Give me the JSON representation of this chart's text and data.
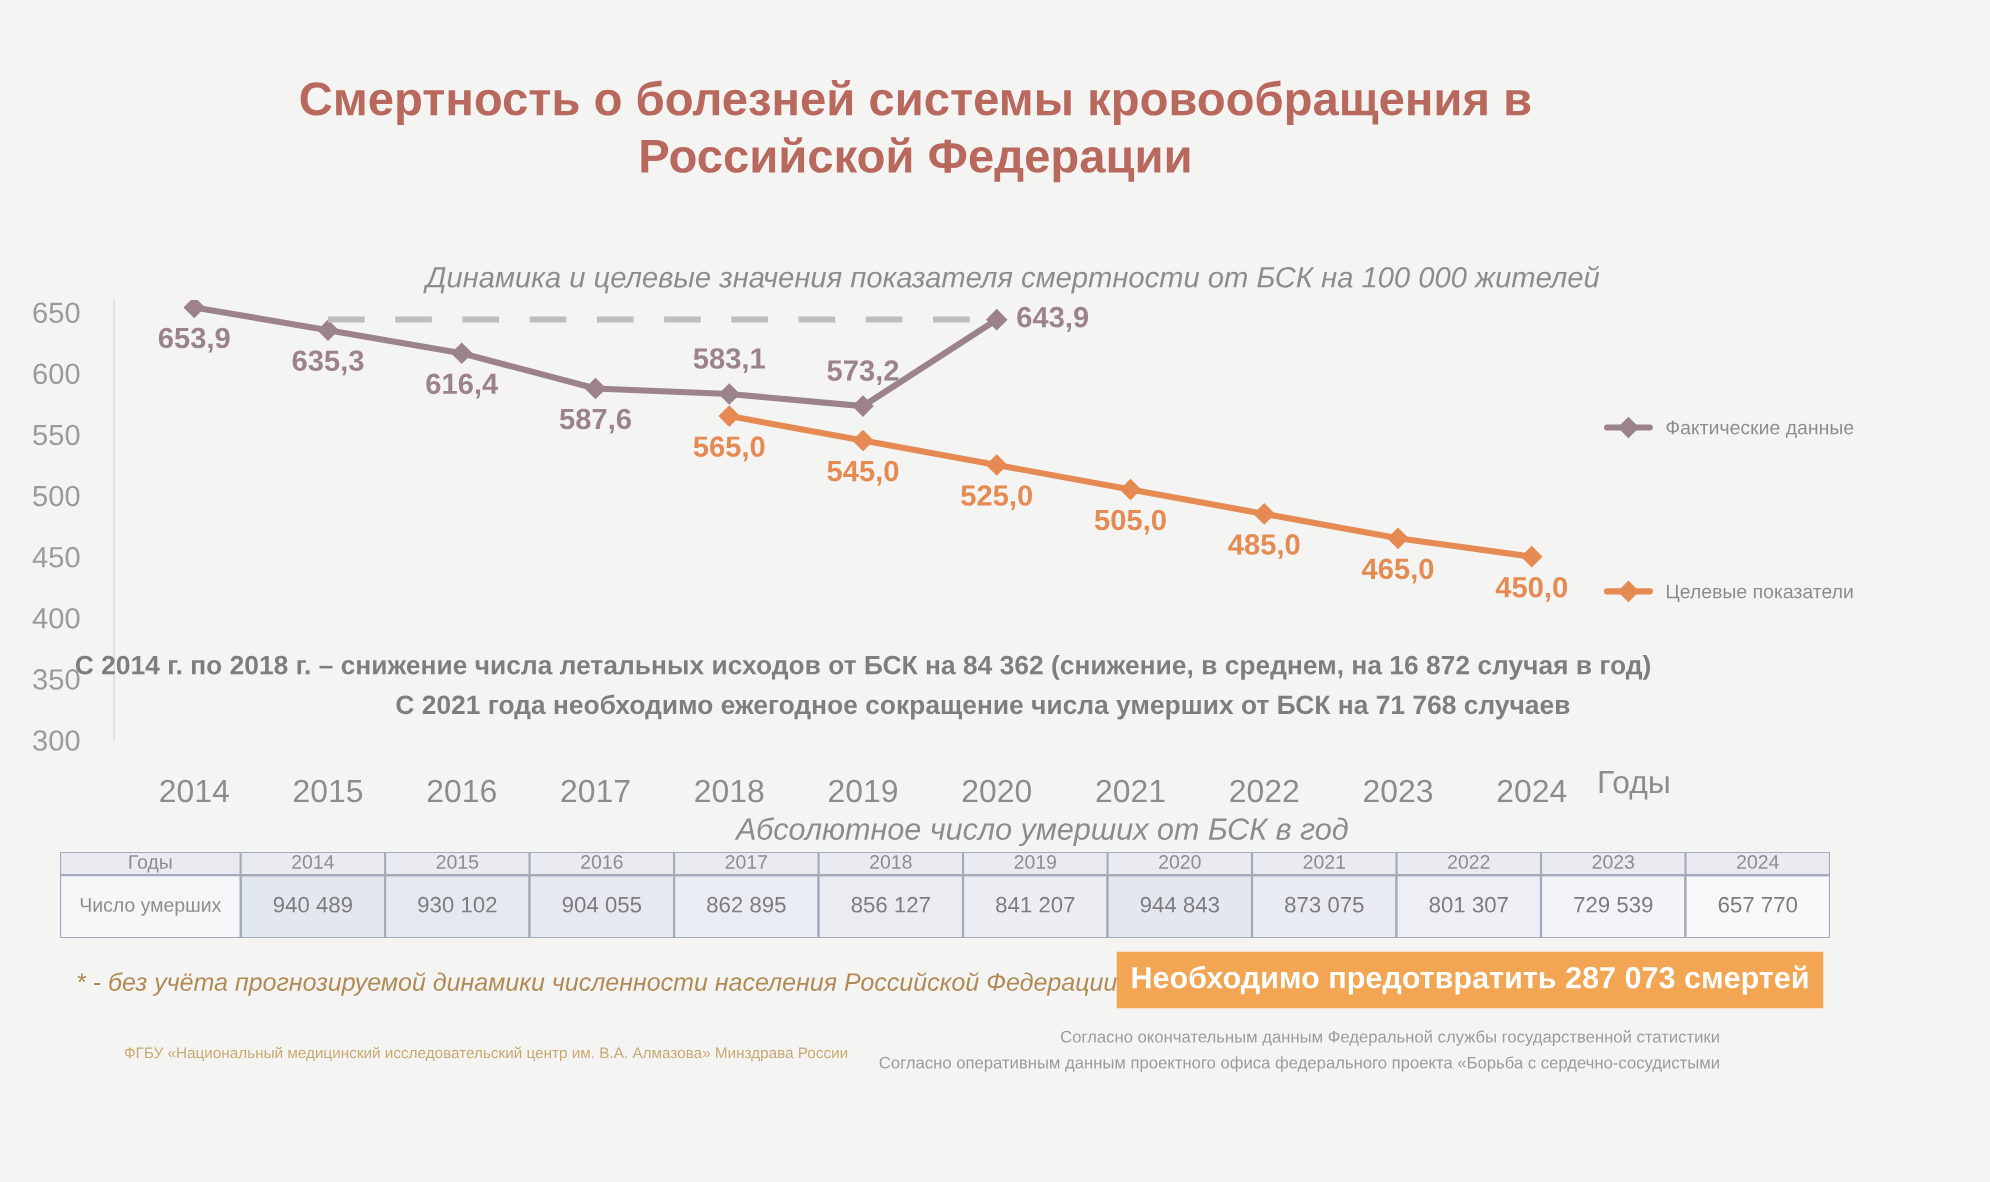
{
  "chart_data": [
    {
      "type": "line",
      "title": "Смертность о болезней системы кровообращения в\nРоссийской Федерации",
      "subtitle": "Динамика и целевые значения показателя смертности от БСК на 100 000 жителей",
      "xlabel": "Годы",
      "categories": [
        "2014",
        "2015",
        "2016",
        "2017",
        "2018",
        "2019",
        "2020",
        "2021",
        "2022",
        "2023",
        "2024"
      ],
      "series": [
        {
          "name": "Фактические данные",
          "color": "#9c8289",
          "values": [
            653.9,
            635.3,
            616.4,
            587.6,
            583.1,
            573.2,
            643.9,
            null,
            null,
            null,
            null
          ],
          "value_labels": [
            "653,9",
            "635,3",
            "616,4",
            "587,6",
            "583,1",
            "573,2",
            "643,9",
            null,
            null,
            null,
            null
          ]
        },
        {
          "name": "Целевые показатели",
          "color": "#e58a52",
          "values": [
            null,
            null,
            null,
            null,
            565.0,
            545.0,
            525.0,
            505.0,
            485.0,
            465.0,
            450.0
          ],
          "value_labels": [
            null,
            null,
            null,
            null,
            "565,0",
            "545,0",
            "525,0",
            "505,0",
            "485,0",
            "465,0",
            "450,0"
          ]
        },
        {
          "type": "line",
          "color": "#bdbdbd",
          "line_style": "dashed",
          "marker": "none",
          "values": [
            null,
            644,
            644,
            644,
            644,
            644,
            644,
            null,
            null,
            null,
            null
          ]
        }
      ],
      "ylim": [
        300,
        660
      ],
      "yticks": [
        300,
        350,
        400,
        450,
        500,
        550,
        600,
        650
      ],
      "marker": "diamond",
      "line_style": "solid",
      "legend": "right",
      "annotations": [
        "С 2014 г. по 2018 г. – снижение числа летальных исходов от БСК на 84 362 (снижение, в среднем, на 16 872 случая в год)",
        "С 2021 года необходимо ежегодное сокращение числа умерших от БСК на 71 768 случаев"
      ]
    },
    {
      "type": "heatmap",
      "title": "Абсолютное число умерших от БСК в год",
      "xlabel": "Годы",
      "categories": [
        "2014",
        "2015",
        "2016",
        "2017",
        "2018",
        "2019",
        "2020",
        "2021",
        "2022",
        "2023",
        "2024"
      ],
      "y_categories": [
        "Число умерших"
      ],
      "cells": [
        [
          940489,
          930102,
          904055,
          862895,
          856127,
          841207,
          944843,
          873075,
          801307,
          729539,
          657770
        ]
      ],
      "cell_labels": [
        [
          "940 489",
          "930 102",
          "904 055",
          "862 895",
          "856 127",
          "841 207",
          "944 843",
          "873 075",
          "801 307",
          "729 539",
          "657 770"
        ]
      ],
      "annotations": [
        "* - без учёта прогнозируемой динамики численности населения Российской Федерации",
        "Необходимо предотвратить 287 073 смертей",
        "ФГБУ «Национальный медицинский исследовательский центр им. В.А. Алмазова» Минздрава России",
        "Согласно окончательным данным Федеральной службы государственной статистики",
        "Согласно оперативным данным проектного офиса федерального проекта «Борьба с сердечно-сосудистыми"
      ]
    }
  ]
}
